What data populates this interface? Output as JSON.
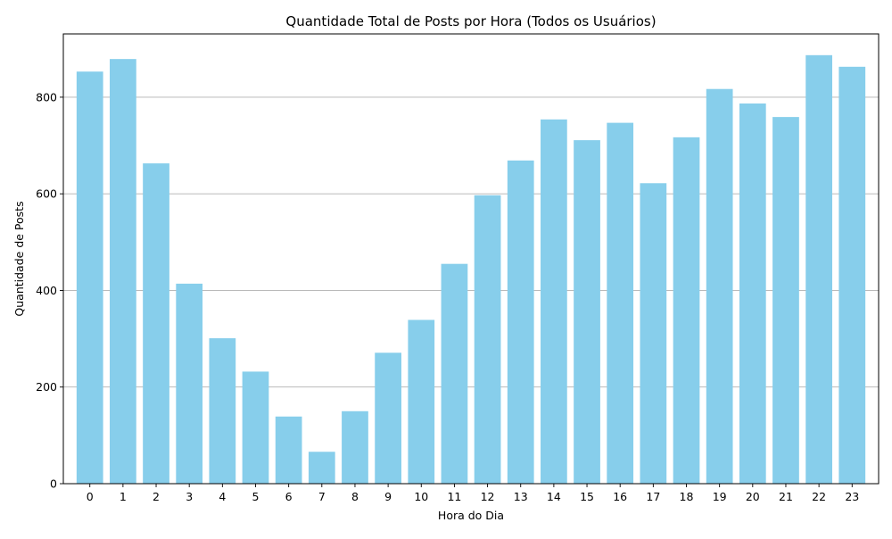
{
  "chart_data": {
    "type": "bar",
    "title": "Quantidade Total de Posts por Hora (Todos os Usuários)",
    "xlabel": "Hora do Dia",
    "ylabel": "Quantidade de Posts",
    "categories": [
      "0",
      "1",
      "2",
      "3",
      "4",
      "5",
      "6",
      "7",
      "8",
      "9",
      "10",
      "11",
      "12",
      "13",
      "14",
      "15",
      "16",
      "17",
      "18",
      "19",
      "20",
      "21",
      "22",
      "23"
    ],
    "values": [
      853,
      879,
      663,
      414,
      301,
      232,
      139,
      66,
      150,
      271,
      339,
      455,
      597,
      669,
      754,
      711,
      747,
      622,
      717,
      817,
      787,
      759,
      887,
      863
    ],
    "yticks": [
      0,
      200,
      400,
      600,
      800
    ],
    "ylim": [
      0,
      931
    ],
    "grid": "y",
    "bar_color": "#87CEEB"
  }
}
